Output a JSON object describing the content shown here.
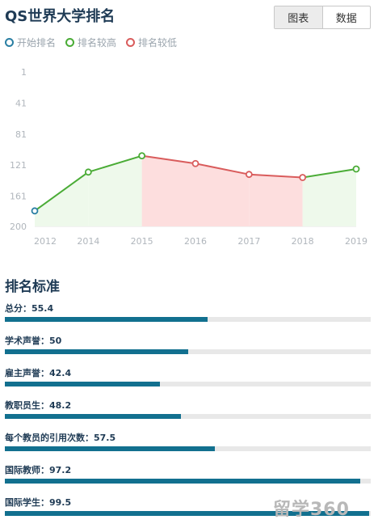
{
  "header": {
    "title": "QS世界大学排名"
  },
  "toggle": {
    "chart_label": "图表",
    "data_label": "数据"
  },
  "legend": [
    {
      "label": "开始排名",
      "color": "#2a7fa3"
    },
    {
      "label": "排名较高",
      "color": "#4aac36"
    },
    {
      "label": "排名较低",
      "color": "#d95c5c"
    }
  ],
  "chart_data": {
    "type": "line",
    "categories": [
      "2012",
      "2014",
      "2015",
      "2016",
      "2017",
      "2018",
      "2019"
    ],
    "values": [
      180,
      130,
      109,
      119,
      133,
      137,
      126
    ],
    "y_ticks": [
      "1",
      "41",
      "81",
      "121",
      "161",
      "200"
    ],
    "ylim": [
      1,
      200
    ],
    "y_reversed": true,
    "colors": {
      "start": "#2a7fa3",
      "higher": "#4aac36",
      "lower": "#d95c5c",
      "higher_fill": "#eef9eb",
      "lower_fill": "#fddede"
    }
  },
  "criteria": {
    "title": "排名标准",
    "items": [
      {
        "label": "总分：55.4",
        "value": 55.4
      },
      {
        "label": "学术声誉：50",
        "value": 50
      },
      {
        "label": "雇主声誉：42.4",
        "value": 42.4
      },
      {
        "label": "教职员生：48.2",
        "value": 48.2
      },
      {
        "label": "每个教员的引用次数：57.5",
        "value": 57.5
      },
      {
        "label": "国际教师：97.2",
        "value": 97.2
      },
      {
        "label": "国际学生：99.5",
        "value": 99.5
      }
    ]
  },
  "watermark": "留学360"
}
